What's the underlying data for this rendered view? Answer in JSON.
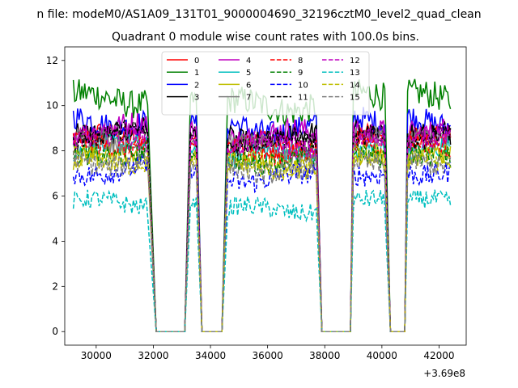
{
  "chart_data": {
    "type": "line",
    "suptitle": "n file: modeM0/AS1A09_131T01_9000004690_32196cztM0_level2_quad_clean",
    "title": "Quadrant 0 module wise count rates with 100.0s bins.",
    "xlabel": "",
    "ylabel": "",
    "x_offset_label": "+3.69e8",
    "xlim": [
      28900,
      42950
    ],
    "ylim": [
      -0.6,
      12.6
    ],
    "x_ticks": [
      30000,
      32000,
      34000,
      36000,
      38000,
      40000,
      42000
    ],
    "x_tick_labels": [
      "30000",
      "32000",
      "34000",
      "36000",
      "38000",
      "40000",
      "42000"
    ],
    "y_ticks": [
      0,
      2,
      4,
      6,
      8,
      10,
      12
    ],
    "y_tick_labels": [
      "0",
      "2",
      "4",
      "6",
      "8",
      "10",
      "12"
    ],
    "legend_position": "upper center",
    "segments": [
      {
        "start": 29200,
        "end": 31800
      },
      {
        "start": 33300,
        "end": 33500
      },
      {
        "start": 34600,
        "end": 37700
      },
      {
        "start": 39000,
        "end": 40100
      },
      {
        "start": 40900,
        "end": 42400
      }
    ],
    "gaps_at_zero": [
      {
        "start": 32100,
        "end": 33100
      },
      {
        "start": 33700,
        "end": 34400
      },
      {
        "start": 37900,
        "end": 38900
      },
      {
        "start": 40300,
        "end": 40800
      }
    ],
    "series": [
      {
        "name": "0",
        "color": "#ff0000",
        "dash": "solid",
        "mean": 8.6,
        "amp": 0.35
      },
      {
        "name": "1",
        "color": "#008000",
        "dash": "solid",
        "mean": 10.3,
        "amp": 0.45
      },
      {
        "name": "2",
        "color": "#0000ff",
        "dash": "solid",
        "mean": 9.3,
        "amp": 0.4
      },
      {
        "name": "3",
        "color": "#000000",
        "dash": "solid",
        "mean": 8.9,
        "amp": 0.35
      },
      {
        "name": "4",
        "color": "#bf00bf",
        "dash": "solid",
        "mean": 9.0,
        "amp": 0.4
      },
      {
        "name": "5",
        "color": "#00bfbf",
        "dash": "solid",
        "mean": 8.1,
        "amp": 0.35
      },
      {
        "name": "6",
        "color": "#bfbf00",
        "dash": "solid",
        "mean": 7.7,
        "amp": 0.35
      },
      {
        "name": "7",
        "color": "#808080",
        "dash": "solid",
        "mean": 8.4,
        "amp": 0.35
      },
      {
        "name": "8",
        "color": "#ff0000",
        "dash": "dashed",
        "mean": 8.3,
        "amp": 0.35
      },
      {
        "name": "9",
        "color": "#008000",
        "dash": "dashed",
        "mean": 7.9,
        "amp": 0.35
      },
      {
        "name": "10",
        "color": "#0000ff",
        "dash": "dashed",
        "mean": 7.1,
        "amp": 0.35
      },
      {
        "name": "11",
        "color": "#000000",
        "dash": "dashed",
        "mean": 8.7,
        "amp": 0.35
      },
      {
        "name": "12",
        "color": "#bf00bf",
        "dash": "dashed",
        "mean": 8.5,
        "amp": 0.35
      },
      {
        "name": "13",
        "color": "#00bfbf",
        "dash": "dashed",
        "mean": 5.7,
        "amp": 0.3
      },
      {
        "name": "14",
        "color": "#bfbf00",
        "dash": "dashed",
        "mean": 7.6,
        "amp": 0.35
      },
      {
        "name": "15",
        "color": "#808080",
        "dash": "dashed",
        "mean": 7.5,
        "amp": 0.35
      }
    ]
  }
}
